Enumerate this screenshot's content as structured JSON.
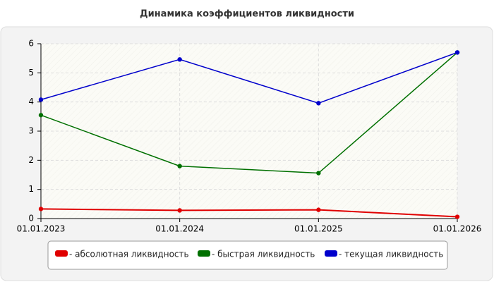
{
  "chart_data": {
    "type": "line",
    "title": "Динамика коэффициентов ликвидности",
    "categories": [
      "01.01.2023",
      "01.01.2024",
      "01.01.2025",
      "01.01.2026"
    ],
    "series": [
      {
        "name": "- абсолютная ликвидность",
        "color": "#e00000",
        "values": [
          0.33,
          0.28,
          0.3,
          0.06
        ]
      },
      {
        "name": "- быстрая ликвидность",
        "color": "#007000",
        "values": [
          3.55,
          1.8,
          1.56,
          5.7
        ]
      },
      {
        "name": "- текущая ликвидность",
        "color": "#0000cc",
        "values": [
          4.08,
          5.46,
          3.96,
          5.7
        ]
      }
    ],
    "ylim": [
      0,
      6
    ],
    "yticks": [
      0,
      1,
      2,
      3,
      4,
      5,
      6
    ],
    "grid": true
  }
}
